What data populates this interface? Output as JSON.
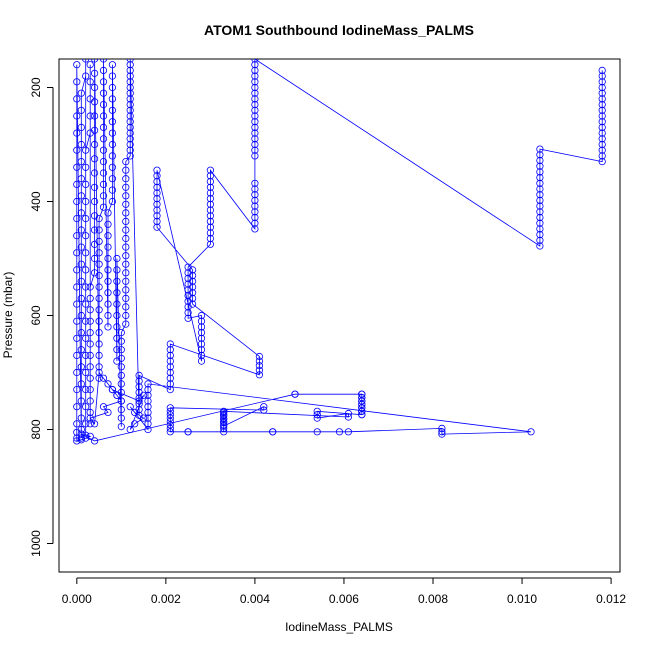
{
  "chart_data": {
    "type": "scatter",
    "title": "ATOM1 Southbound IodineMass_PALMS",
    "xlabel": "IodineMass_PALMS",
    "ylabel": "Pressure (mbar)",
    "xlim": [
      -0.0004,
      0.0122
    ],
    "ylim": [
      1050,
      150
    ],
    "y_reversed": true,
    "x_ticks": [
      0.0,
      0.002,
      0.004,
      0.006,
      0.008,
      0.01,
      0.012
    ],
    "x_tick_labels": [
      "0.000",
      "0.002",
      "0.004",
      "0.006",
      "0.008",
      "0.010",
      "0.012"
    ],
    "y_ticks": [
      200,
      400,
      600,
      800,
      1000
    ],
    "y_tick_labels": [
      "200",
      "400",
      "600",
      "800",
      "1000"
    ],
    "grid": false,
    "marker": "open-circle",
    "connected": true,
    "series": [
      {
        "color": "#0000ff",
        "x": [
          0.0118,
          0.0118,
          0.0118,
          0.0118,
          0.0118,
          0.0118,
          0.0118,
          0.0118,
          0.0118,
          0.0118,
          0.0118,
          0.0118,
          0.0118,
          0.0118,
          0.0118,
          0.0118,
          0.0118,
          0.0104,
          0.0104,
          0.0104,
          0.0104,
          0.0104,
          0.0104,
          0.0104,
          0.0104,
          0.0104,
          0.0104,
          0.0104,
          0.0104,
          0.0104,
          0.0104,
          0.0104,
          0.0104,
          0.0104,
          0.0104,
          0.004,
          0.004,
          0.004,
          0.004,
          0.004,
          0.004,
          0.004,
          0.004,
          0.004,
          0.004,
          0.004,
          0.004,
          0.004,
          0.004,
          0.004,
          0.004,
          0.004,
          0.004,
          0.004,
          0.004,
          0.004,
          0.004,
          0.004,
          0.004,
          0.004,
          0.004,
          0.004,
          0.003,
          0.003,
          0.003,
          0.003,
          0.003,
          0.003,
          0.003,
          0.003,
          0.003,
          0.003,
          0.003,
          0.003,
          0.003,
          0.003,
          0.0025,
          0.0025,
          0.0025,
          0.0025,
          0.0025,
          0.0025,
          0.0025,
          0.0025,
          0.0025,
          0.0025,
          0.0028,
          0.0028,
          0.0028,
          0.0028,
          0.0028,
          0.0028,
          0.0028,
          0.0028,
          0.0028,
          0.0018,
          0.0018,
          0.0018,
          0.0018,
          0.0018,
          0.0018,
          0.0018,
          0.0018,
          0.0018,
          0.0018,
          0.0018,
          0.0026,
          0.0026,
          0.0026,
          0.0026,
          0.0026,
          0.0026,
          0.0026,
          0.0041,
          0.0041,
          0.0041,
          0.0041,
          0.0041,
          0.0021,
          0.0021,
          0.0021,
          0.0021,
          0.0021,
          0.0021,
          0.0021,
          0.0021,
          0.0021,
          0.0014,
          0.0014,
          0.0014,
          0.0014,
          0.0014,
          0.0014,
          0.0014,
          0.0014,
          0.0012,
          0.0012,
          0.0012,
          0.0012,
          0.0012,
          0.0012,
          0.0012,
          0.0012,
          0.0012,
          0.0012,
          0.0012,
          0.0012,
          0.0012,
          0.0012,
          0.0012,
          0.0012,
          0.0012,
          0.0012,
          0.0011,
          0.0011,
          0.0011,
          0.0011,
          0.0011,
          0.0011,
          0.0011,
          0.0011,
          0.0011,
          0.0011,
          0.0011,
          0.0011,
          0.0011,
          0.0011,
          0.0011,
          0.0011,
          0.0011,
          0.0011,
          0.0011,
          0.0011,
          0.001,
          0.001,
          0.001,
          0.001,
          0.001,
          0.001,
          0.001,
          0.001,
          0.001,
          0.001,
          0.001,
          0.001,
          0.0009,
          0.0009,
          0.0009,
          0.0009,
          0.0009,
          0.0009,
          0.0009,
          0.0009,
          0.0009,
          0.0009,
          0.0008,
          0.0008,
          0.0008,
          0.0008,
          0.0008,
          0.0008,
          0.0008,
          0.0008,
          0.0008,
          0.0008,
          0.0008,
          0.0008,
          0.0008,
          0.0007,
          0.0007,
          0.0007,
          0.0007,
          0.0007,
          0.0007,
          0.0007,
          0.0007,
          0.0007,
          0.0007,
          0.0007,
          0.0006,
          0.0006,
          0.0006,
          0.0006,
          0.0006,
          0.0006,
          0.0006,
          0.0006,
          0.0006,
          0.0006,
          0.0006,
          0.0006,
          0.0006,
          0.0006,
          0.0005,
          0.0005,
          0.0005,
          0.0005,
          0.0005,
          0.0005,
          0.0005,
          0.0005,
          0.0005,
          0.0005,
          0.0005,
          0.0005,
          0.0005,
          0.0005,
          0.0005,
          0.0004,
          0.0004,
          0.0004,
          0.0004,
          0.0004,
          0.0004,
          0.0004,
          0.0004,
          0.0004,
          0.0004,
          0.0004,
          0.0004,
          0.0004,
          0.0004,
          0.0004,
          0.0004,
          0.0003,
          0.0003,
          0.0003,
          0.0003,
          0.0003,
          0.0003,
          0.0003,
          0.0003,
          0.0003,
          0.0003,
          0.0003,
          0.0003,
          0.0003,
          0.0003,
          0.0003,
          0.0003,
          0.0003,
          0.0003,
          0.0002,
          0.0002,
          0.0002,
          0.0002,
          0.0002,
          0.0002,
          0.0002,
          0.0002,
          0.0002,
          0.0002,
          0.0002,
          0.0002,
          0.0002,
          0.0002,
          0.0002,
          0.0002,
          0.0002,
          0.0002,
          0.0002,
          0.0002,
          0.0001,
          0.0001,
          0.0001,
          0.0001,
          0.0001,
          0.0001,
          0.0001,
          0.0001,
          0.0001,
          0.0001,
          0.0001,
          0.0001,
          0.0001,
          0.0001,
          0.0001,
          0.0001,
          0.0001,
          0.0001,
          0.0001,
          0.0001,
          0.0001,
          0.0001,
          0.0,
          0.0,
          0.0,
          0.0,
          0.0,
          0.0,
          0.0,
          0.0,
          0.0,
          0.0,
          0.0,
          0.0,
          0.0,
          0.0,
          0.0,
          0.0,
          0.0,
          0.0,
          0.0,
          0.0,
          0.0,
          0.0,
          0.0,
          0.0,
          0.0,
          0.0001,
          0.0002,
          0.0003,
          0.0001,
          0.0004,
          0.0049,
          0.0049,
          0.0064,
          0.0064,
          0.0064,
          0.0064,
          0.0064,
          0.0064,
          0.0064,
          0.0064,
          0.0064,
          0.0064,
          0.0064,
          0.0064,
          0.0064,
          0.0064,
          0.0054,
          0.0054,
          0.0054,
          0.0061,
          0.0061,
          0.0033,
          0.0033,
          0.0033,
          0.0033,
          0.0033,
          0.0033,
          0.0033,
          0.0033,
          0.0033,
          0.0033,
          0.0033,
          0.0033,
          0.0042,
          0.0042,
          0.0021,
          0.0021,
          0.0021,
          0.0021,
          0.0021,
          0.0021,
          0.0021,
          0.0021,
          0.0025,
          0.0025,
          0.0044,
          0.0044,
          0.0054,
          0.0059,
          0.0061,
          0.0082,
          0.0082,
          0.0082,
          0.0102,
          0.0016,
          0.0016,
          0.0016,
          0.0016,
          0.0016,
          0.0016,
          0.0016,
          0.0016,
          0.0016,
          0.0012,
          0.0013,
          0.0015,
          0.0013,
          0.0012,
          0.0015,
          0.0014,
          0.0008,
          0.0009,
          0.001,
          0.0006,
          0.0007,
          0.0003,
          0.0004,
          0.0005,
          0.0006,
          0.0007,
          0.0008,
          0.0009
        ],
        "y": [
          170,
          180,
          190,
          200,
          210,
          220,
          230,
          240,
          250,
          260,
          270,
          280,
          290,
          300,
          310,
          320,
          330,
          308,
          318,
          328,
          338,
          348,
          358,
          368,
          378,
          388,
          398,
          408,
          418,
          428,
          438,
          448,
          458,
          468,
          478,
          150,
          160,
          170,
          180,
          190,
          200,
          210,
          220,
          230,
          240,
          250,
          260,
          270,
          280,
          290,
          300,
          310,
          320,
          368,
          378,
          388,
          398,
          408,
          418,
          428,
          438,
          448,
          345,
          355,
          365,
          375,
          385,
          395,
          405,
          415,
          425,
          435,
          445,
          455,
          465,
          475,
          515,
          525,
          535,
          545,
          555,
          565,
          575,
          585,
          595,
          605,
          600,
          610,
          620,
          630,
          640,
          650,
          660,
          670,
          680,
          345,
          355,
          365,
          375,
          385,
          395,
          405,
          415,
          425,
          435,
          445,
          520,
          530,
          540,
          550,
          560,
          570,
          580,
          672,
          680,
          688,
          696,
          704,
          650,
          660,
          670,
          680,
          690,
          700,
          710,
          720,
          730,
          705,
          715,
          725,
          735,
          745,
          755,
          765,
          775,
          150,
          160,
          170,
          180,
          190,
          200,
          210,
          220,
          230,
          240,
          250,
          260,
          270,
          280,
          290,
          300,
          310,
          320,
          330,
          345,
          360,
          375,
          390,
          405,
          420,
          435,
          450,
          465,
          480,
          495,
          510,
          525,
          540,
          555,
          570,
          585,
          600,
          615,
          630,
          645,
          660,
          675,
          690,
          705,
          720,
          735,
          750,
          765,
          780,
          795,
          500,
          520,
          540,
          560,
          580,
          600,
          620,
          640,
          660,
          680,
          160,
          180,
          200,
          220,
          240,
          260,
          280,
          300,
          320,
          340,
          360,
          380,
          400,
          420,
          440,
          460,
          480,
          500,
          520,
          540,
          560,
          580,
          600,
          620,
          150,
          170,
          190,
          210,
          230,
          250,
          270,
          290,
          310,
          330,
          350,
          370,
          390,
          410,
          430,
          450,
          470,
          490,
          510,
          530,
          550,
          570,
          590,
          610,
          630,
          650,
          670,
          690,
          710,
          150,
          175,
          200,
          225,
          250,
          275,
          300,
          325,
          350,
          375,
          400,
          425,
          450,
          475,
          500,
          525,
          550,
          570,
          590,
          610,
          630,
          650,
          670,
          690,
          710,
          730,
          750,
          770,
          790,
          160,
          190,
          220,
          250,
          280,
          310,
          340,
          370,
          400,
          430,
          460,
          490,
          520,
          550,
          580,
          610,
          640,
          670,
          700,
          730,
          760,
          790,
          810,
          150,
          180,
          210,
          240,
          270,
          300,
          330,
          360,
          390,
          420,
          450,
          480,
          510,
          540,
          570,
          600,
          630,
          660,
          690,
          720,
          750,
          780,
          800,
          815,
          160,
          190,
          220,
          250,
          280,
          310,
          340,
          370,
          400,
          430,
          460,
          490,
          520,
          550,
          580,
          610,
          640,
          670,
          700,
          730,
          760,
          790,
          805,
          815,
          820,
          818,
          815,
          812,
          808,
          820,
          738,
          738,
          738,
          744,
          750,
          756,
          762,
          768,
          774,
          738,
          744,
          750,
          756,
          762,
          768,
          774,
          768,
          774,
          780,
          772,
          778,
          768,
          774,
          780,
          786,
          792,
          798,
          804,
          770,
          776,
          782,
          788,
          794,
          760,
          766,
          762,
          768,
          774,
          780,
          786,
          792,
          798,
          804,
          804,
          804,
          804,
          804,
          804,
          804,
          804,
          798,
          804,
          808,
          804,
          720,
          730,
          740,
          750,
          760,
          770,
          780,
          790,
          800,
          760,
          770,
          780,
          790,
          800,
          740,
          750,
          730,
          740,
          750,
          760,
          770,
          780,
          790,
          700,
          710,
          720,
          730,
          740
        ]
      }
    ]
  }
}
